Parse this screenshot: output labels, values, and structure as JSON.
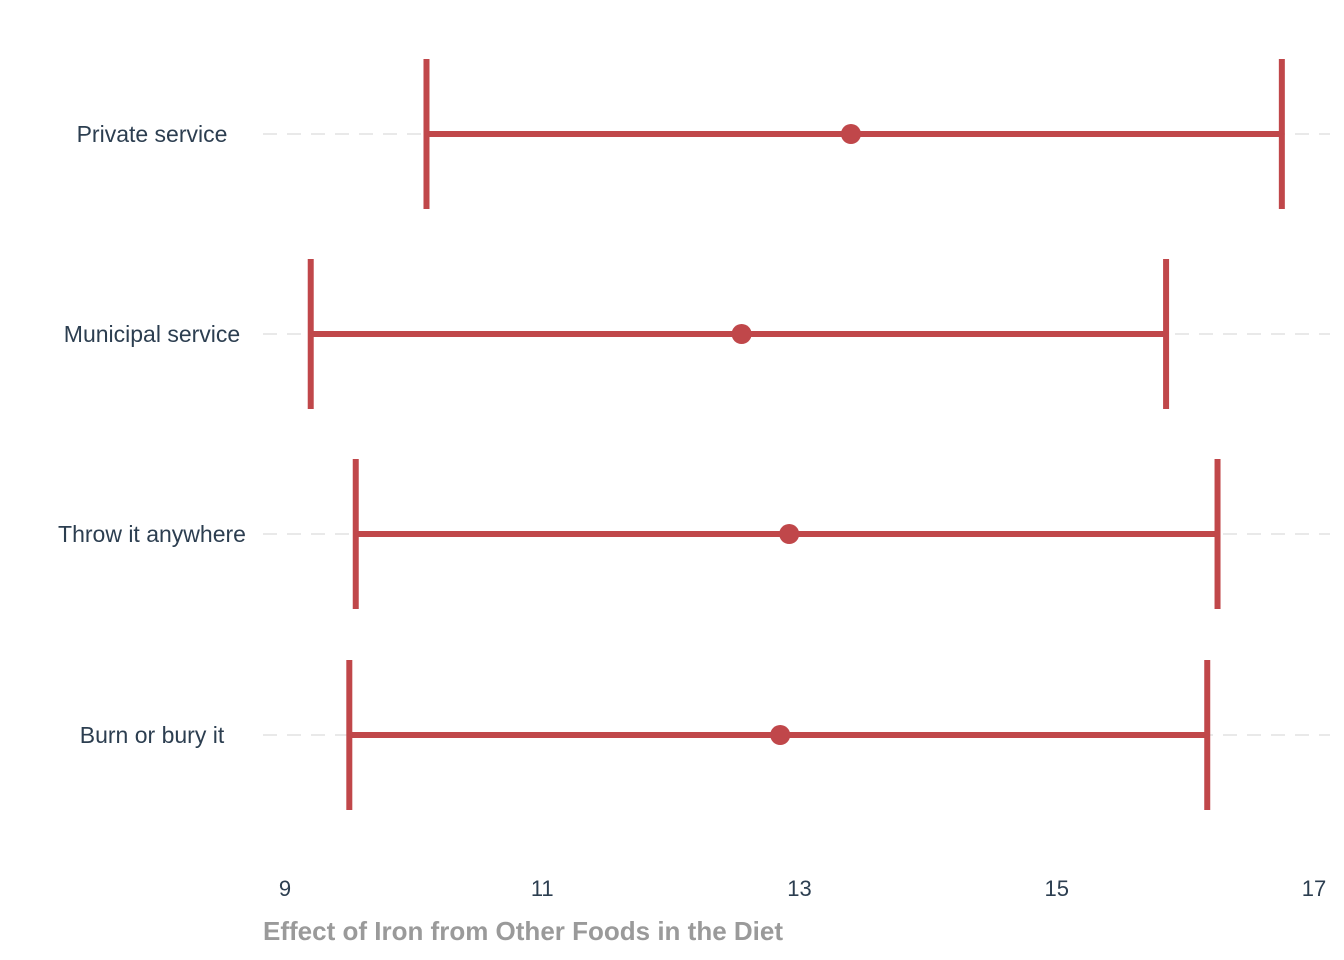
{
  "chart_data": {
    "type": "errorbar",
    "categories": [
      "Private service",
      "Municipal service",
      "Throw it anywhere",
      "Burn or bury it"
    ],
    "estimates": [
      13.4,
      12.55,
      12.92,
      12.85
    ],
    "lower": [
      10.1,
      9.2,
      9.55,
      9.5
    ],
    "upper": [
      16.75,
      15.85,
      16.25,
      16.17
    ],
    "xlabel": "Effect of Iron from Other Foods in the Diet",
    "xlim": [
      9,
      17
    ],
    "xticks": [
      9,
      11,
      13,
      15,
      17
    ],
    "xtick_labels": [
      "9",
      "11",
      "13",
      "15",
      "17"
    ],
    "grid": "horizontal dashed",
    "color": "#c0474a",
    "label_color": "#2c3e50",
    "axis_title_color": "#9a9a9a"
  }
}
